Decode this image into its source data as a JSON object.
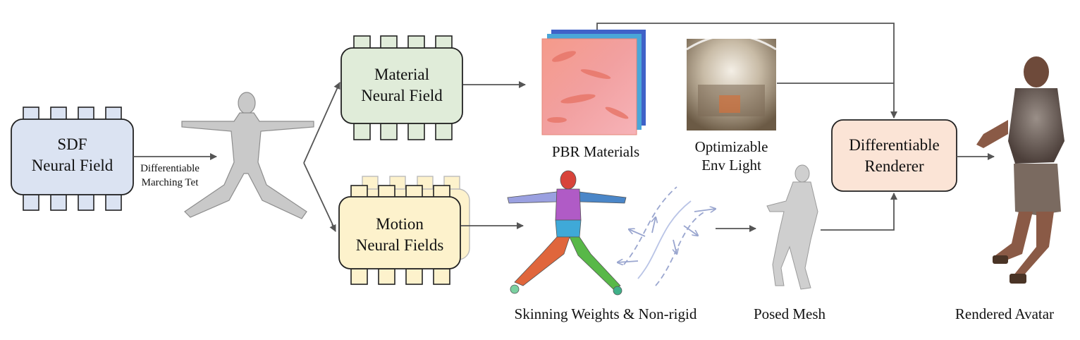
{
  "sdf_block": {
    "line1": "SDF",
    "line2": "Neural Field",
    "fill": "#dbe3f2"
  },
  "material_block": {
    "line1": "Material",
    "line2": "Neural Field",
    "fill": "#e0ecd9"
  },
  "motion_block": {
    "line1": "Motion",
    "line2": "Neural Fields",
    "fill": "#fdf2cc"
  },
  "renderer_block": {
    "line1": "Differentiable",
    "line2": "Renderer",
    "fill": "#fbe4d6"
  },
  "marching_label": {
    "line1": "Differentiable",
    "line2": "Marching Tet"
  },
  "captions": {
    "pbr": "PBR Materials",
    "env_line1": "Optimizable",
    "env_line2": "Env Light",
    "skinning": "Skinning Weights & Non-rigid",
    "posed": "Posed Mesh",
    "rendered": "Rendered Avatar"
  },
  "icons": {
    "template_mesh": "tpose-mesh-icon",
    "pbr_stack": "pbr-texture-stack-icon",
    "env_map": "environment-map-icon",
    "skinned_body": "skinned-body-icon",
    "deformation": "deformation-arrows-icon",
    "posed_mesh": "posed-mesh-icon",
    "avatar": "rendered-avatar-icon"
  }
}
